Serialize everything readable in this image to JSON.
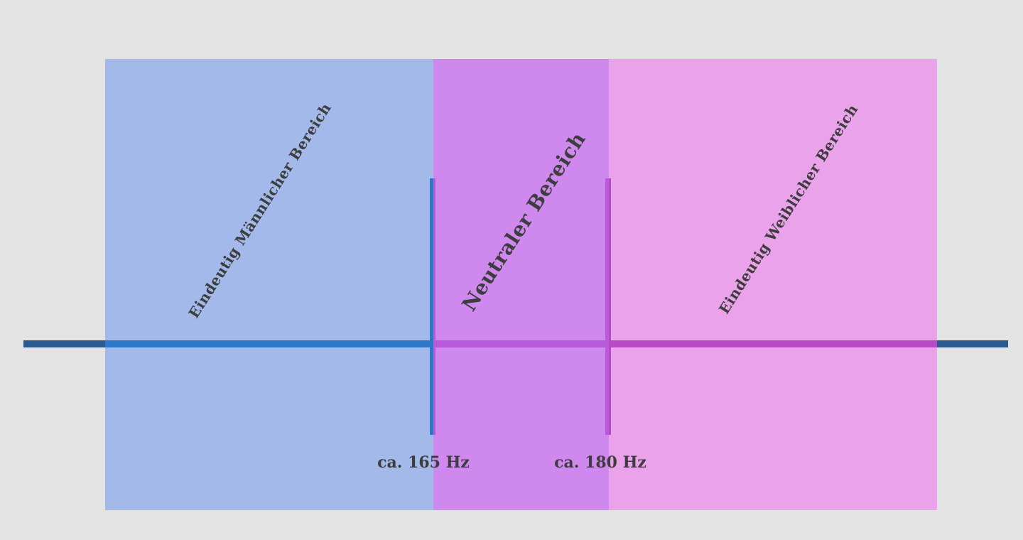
{
  "regions": [
    {
      "label": "Eindeutig Männlicher Bereich"
    },
    {
      "label": "Neutraler Bereich"
    },
    {
      "label": "Eindeutig Weiblicher Bereich"
    }
  ],
  "boundaries": [
    {
      "label": "ca. 165 Hz"
    },
    {
      "label": "ca. 180 Hz"
    }
  ]
}
